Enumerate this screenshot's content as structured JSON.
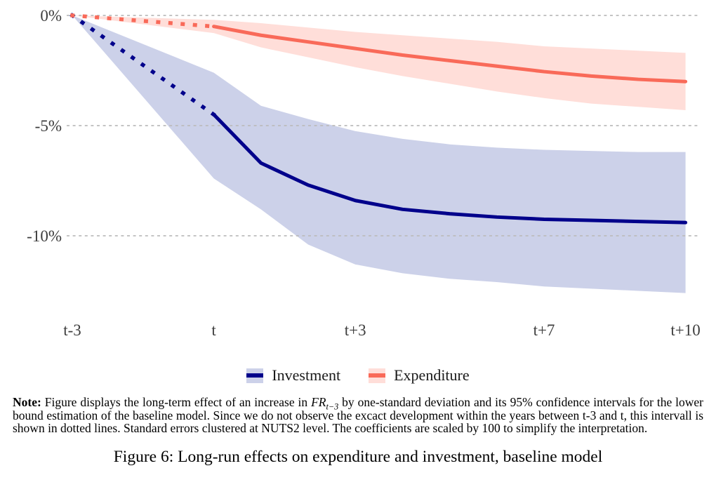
{
  "chart_data": {
    "type": "line",
    "title": "",
    "x_axis": {
      "range": [
        -3,
        10
      ],
      "ticks": [
        {
          "year": -3,
          "label": "t-3"
        },
        {
          "year": 0,
          "label": "t"
        },
        {
          "year": 3,
          "label": "t+3"
        },
        {
          "year": 7,
          "label": "t+7"
        },
        {
          "year": 10,
          "label": "t+10"
        }
      ]
    },
    "y_axis": {
      "unit": "percent",
      "range": [
        -13.5,
        0.5
      ],
      "ticks": [
        {
          "value": 0,
          "label": "0%"
        },
        {
          "value": -5,
          "label": "-5%"
        },
        {
          "value": -10,
          "label": "-10%"
        }
      ]
    },
    "grid": {
      "show": true,
      "style": "dashed",
      "color": "#bcbcbc"
    },
    "legend_position": "bottom-center",
    "years": [
      -3,
      0,
      1,
      2,
      3,
      4,
      5,
      6,
      7,
      8,
      9,
      10
    ],
    "series": [
      {
        "name": "Investment",
        "line_color": "#00008b",
        "band_color": "#ccd1e9",
        "dotted_until": 0,
        "effect": [
          0,
          -4.5,
          -6.7,
          -7.7,
          -8.4,
          -8.8,
          -9.0,
          -9.15,
          -9.25,
          -9.3,
          -9.35,
          -9.4
        ],
        "ci_upper": [
          0,
          -2.6,
          -4.1,
          -4.7,
          -5.25,
          -5.6,
          -5.85,
          -6.0,
          -6.1,
          -6.15,
          -6.2,
          -6.2
        ],
        "ci_lower": [
          0,
          -7.4,
          -8.8,
          -10.4,
          -11.3,
          -11.7,
          -11.95,
          -12.1,
          -12.3,
          -12.4,
          -12.5,
          -12.6
        ]
      },
      {
        "name": "Expenditure",
        "line_color": "#f96a59",
        "band_color": "#ffded9",
        "dotted_until": 0,
        "effect": [
          0,
          -0.5,
          -0.9,
          -1.2,
          -1.5,
          -1.8,
          -2.05,
          -2.3,
          -2.55,
          -2.75,
          -2.9,
          -3.0
        ],
        "ci_upper": [
          0,
          -0.2,
          -0.35,
          -0.55,
          -0.75,
          -0.9,
          -1.05,
          -1.2,
          -1.4,
          -1.5,
          -1.6,
          -1.7
        ],
        "ci_lower": [
          0,
          -0.8,
          -1.45,
          -1.9,
          -2.35,
          -2.75,
          -3.1,
          -3.45,
          -3.75,
          -4.0,
          -4.15,
          -4.3
        ]
      }
    ]
  },
  "note": {
    "label": "Note:",
    "pre": " Figure displays the long-term effect of an increase in ",
    "math_base": "FR",
    "math_sub": "t−3",
    "post": " by one-standard deviation and its 95% confidence intervals for the lower bound estimation of the baseline model. Since we do not observe the excact development within the years between t-3 and t, this intervall is shown in dotted lines. Standard errors clustered at NUTS2 level. The coefficients are scaled by 100 to simplify the interpretation."
  },
  "caption": {
    "label": "Figure 6:",
    "text": "Long-run effects on expenditure and investment, baseline model"
  }
}
